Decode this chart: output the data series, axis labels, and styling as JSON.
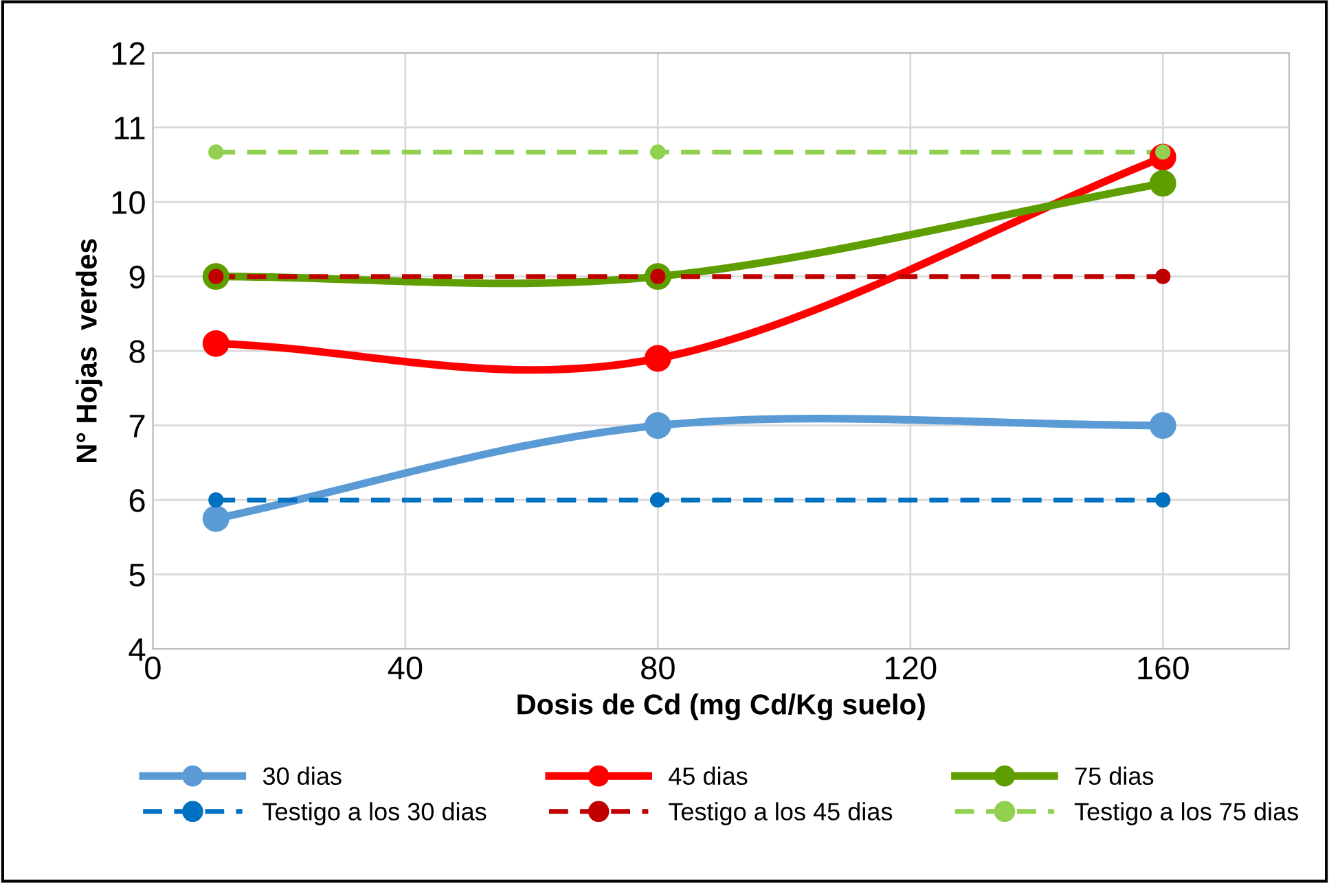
{
  "chart_data": {
    "type": "line",
    "xlabel": "Dosis de Cd (mg Cd/Kg suelo)",
    "ylabel": "N° Hojas  verdes",
    "x": [
      10,
      80,
      160
    ],
    "series": [
      {
        "name": "30 dias",
        "color": "#5b9bd5",
        "values": [
          5.75,
          7.0,
          7.0
        ],
        "line_style": "solid"
      },
      {
        "name": "45 dias",
        "color": "#ff0000",
        "values": [
          8.1,
          7.9,
          10.6
        ],
        "line_style": "solid"
      },
      {
        "name": "75 dias",
        "color": "#5e9e00",
        "values": [
          9.0,
          9.0,
          10.25
        ],
        "line_style": "solid"
      },
      {
        "name": "Testigo a los 30 dias",
        "color": "#0070c0",
        "values": [
          6,
          6,
          6
        ],
        "line_style": "dashed"
      },
      {
        "name": "Testigo a los 45 dias",
        "color": "#c00000",
        "values": [
          9,
          9,
          9
        ],
        "line_style": "dashed"
      },
      {
        "name": "Testigo a los 75 dias",
        "color": "#92d050",
        "values": [
          10.67,
          10.67,
          10.67
        ],
        "line_style": "dashed"
      }
    ],
    "xlim": [
      0,
      180
    ],
    "xticks": [
      0,
      40,
      80,
      120,
      160
    ],
    "ylim": [
      4,
      12
    ],
    "yticks": [
      4,
      5,
      6,
      7,
      8,
      9,
      10,
      11,
      12
    ],
    "grid": true,
    "legend": "bottom",
    "marker": "circle"
  }
}
